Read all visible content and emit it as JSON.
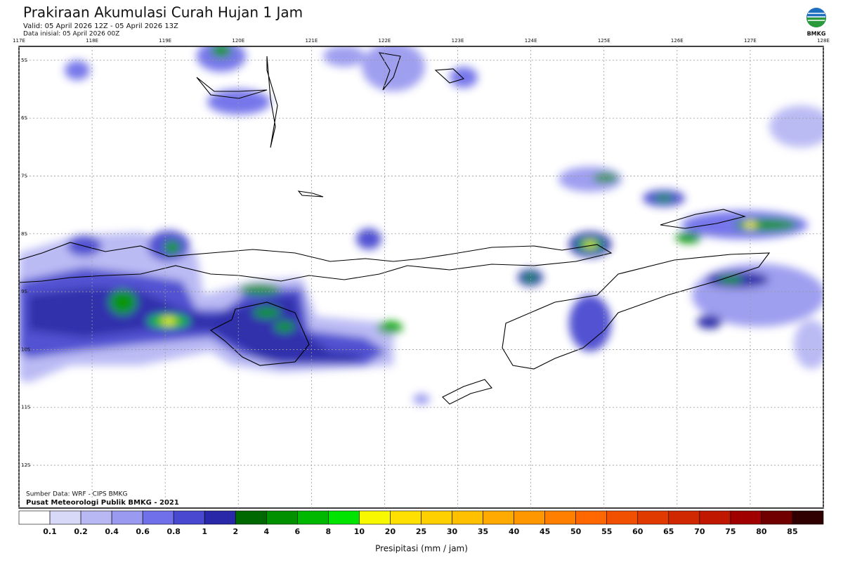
{
  "header": {
    "title": "Prakiraan Akumulasi Curah Hujan 1 Jam",
    "valid": "Valid: 05 April 2026 12Z - 05 April 2026 13Z",
    "init": "Data inisial: 05 April 2026 00Z",
    "logo": "BMKG"
  },
  "map": {
    "lonlim": [
      117,
      128
    ],
    "latlim": [
      -12.74,
      -4.76
    ],
    "lonticks": [
      {
        "value": 117,
        "label": "117E"
      },
      {
        "value": 118,
        "label": "118E"
      },
      {
        "value": 119,
        "label": "119E"
      },
      {
        "value": 120,
        "label": "120E"
      },
      {
        "value": 121,
        "label": "121E"
      },
      {
        "value": 122,
        "label": "122E"
      },
      {
        "value": 123,
        "label": "123E"
      },
      {
        "value": 124,
        "label": "124E"
      },
      {
        "value": 125,
        "label": "125E"
      },
      {
        "value": 126,
        "label": "126E"
      },
      {
        "value": 127,
        "label": "127E"
      },
      {
        "value": 128,
        "label": "128E"
      }
    ],
    "latticks": [
      {
        "value": -5,
        "label": "5S"
      },
      {
        "value": -6,
        "label": "6S"
      },
      {
        "value": -7,
        "label": "7S"
      },
      {
        "value": -8,
        "label": "8S"
      },
      {
        "value": -9,
        "label": "9S"
      },
      {
        "value": -10,
        "label": "10S"
      },
      {
        "value": -11,
        "label": "11S"
      },
      {
        "value": -12,
        "label": "12S"
      }
    ],
    "source": "Sumber Data: WRF - CIPS BMKG",
    "credit": "Pusat Meteorologi Publik BMKG - 2021"
  },
  "colorbar": {
    "title": "Presipitasi (mm / jam)",
    "colors": [
      "#ffffff",
      "#d8d8f8",
      "#b8b8f4",
      "#9a9af0",
      "#7070ea",
      "#4848d0",
      "#2828a8",
      "#006800",
      "#009000",
      "#00b800",
      "#00e400",
      "#f8f800",
      "#ffe000",
      "#ffd000",
      "#ffc000",
      "#ffaa00",
      "#ff9800",
      "#ff8000",
      "#ff6800",
      "#f05000",
      "#e03a00",
      "#d02800",
      "#c01800",
      "#a00000",
      "#700000",
      "#300000"
    ],
    "labels": [
      "0.1",
      "0.2",
      "0.4",
      "0.6",
      "0.8",
      "1",
      "2",
      "4",
      "6",
      "8",
      "10",
      "20",
      "25",
      "30",
      "35",
      "40",
      "45",
      "50",
      "55",
      "60",
      "65",
      "70",
      "75",
      "80",
      "85"
    ]
  }
}
